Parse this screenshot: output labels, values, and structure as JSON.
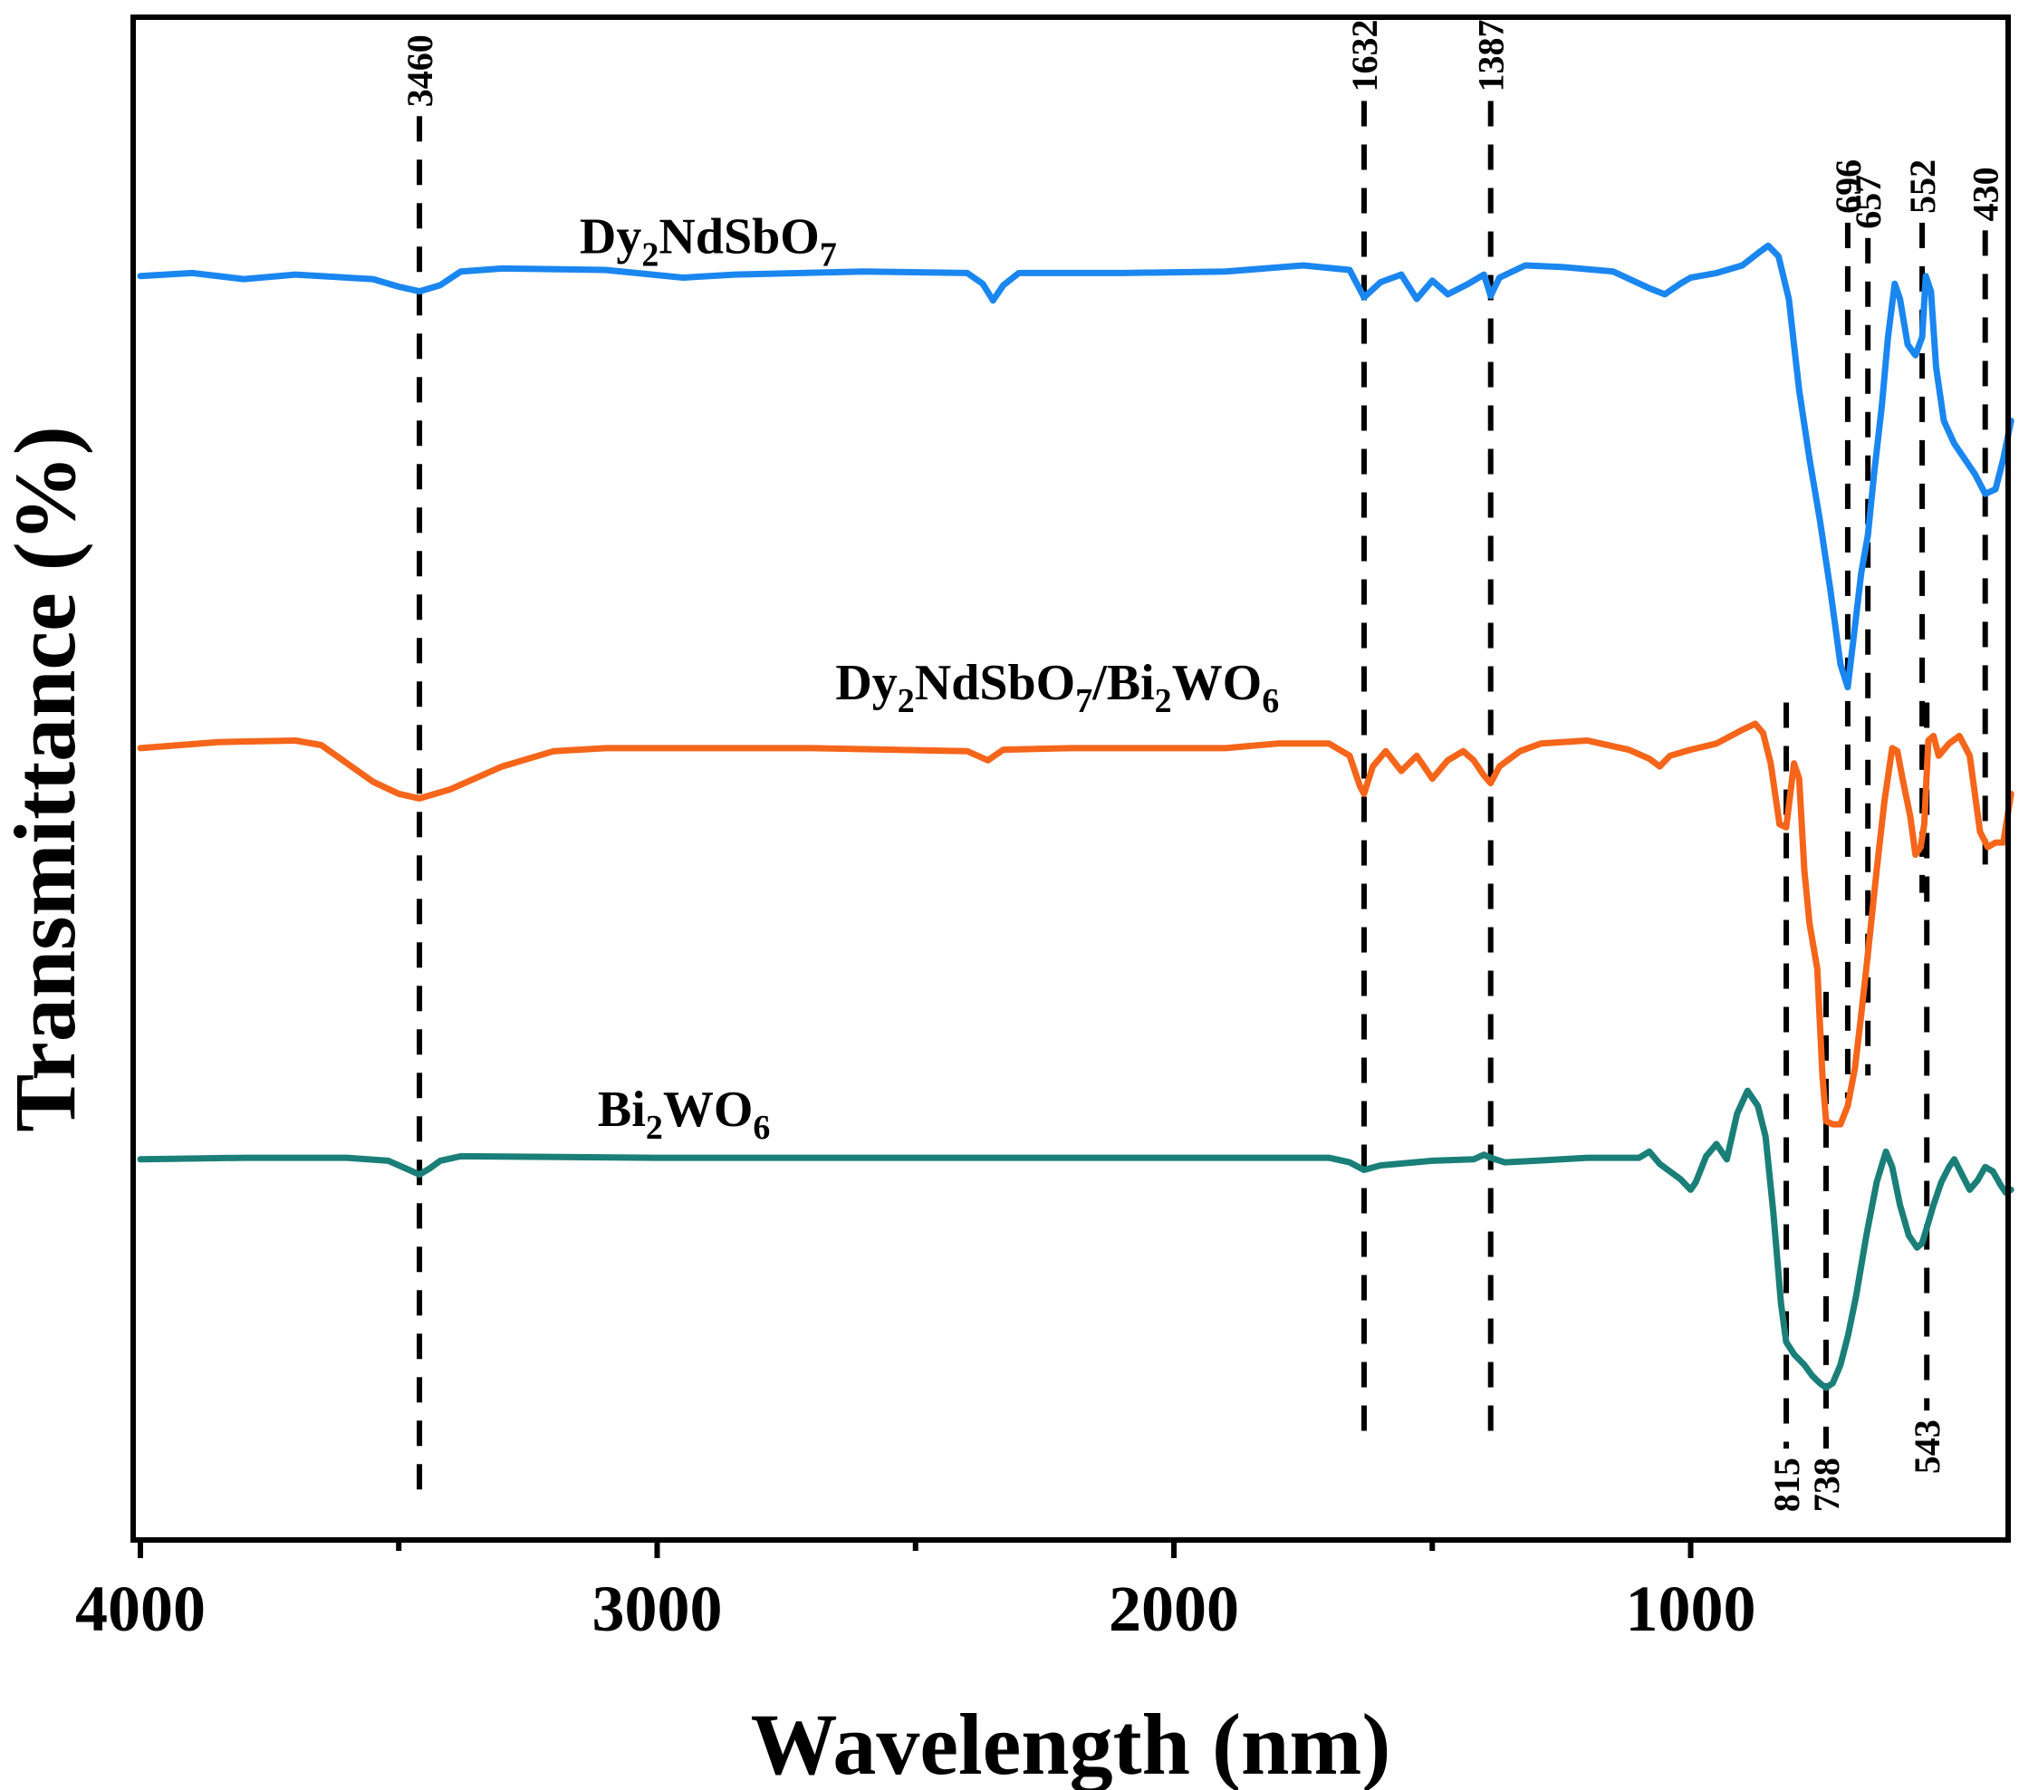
{
  "chart_data": {
    "type": "line",
    "title": "",
    "xlabel": "Wavelength (nm)",
    "ylabel": "Transmittance (%)",
    "xlim": [
      4000,
      380
    ],
    "x_reversed": true,
    "ylim": [
      0,
      100
    ],
    "y_ticks_shown": false,
    "x_ticks": [
      4000,
      3000,
      2000,
      1000
    ],
    "x_tick_labels": [
      "4000",
      "3000",
      "2000",
      "1000"
    ],
    "x_minor_ticks": [
      3500,
      2500,
      1500
    ],
    "legend": "none",
    "grid": false,
    "series": [
      {
        "name": "Dy2NdSbO7",
        "label_parts": [
          [
            "Dy",
            ""
          ],
          [
            "2",
            "sub"
          ],
          [
            "NdSbO",
            ""
          ],
          [
            "7",
            "sub"
          ]
        ],
        "color": "#1a86f0",
        "label_anchor": [
          3150,
          84.5
        ],
        "points": [
          [
            4000,
            83
          ],
          [
            3900,
            83.2
          ],
          [
            3800,
            82.8
          ],
          [
            3700,
            83.1
          ],
          [
            3600,
            82.9
          ],
          [
            3550,
            82.8
          ],
          [
            3500,
            82.3
          ],
          [
            3460,
            82.0
          ],
          [
            3420,
            82.4
          ],
          [
            3380,
            83.3
          ],
          [
            3300,
            83.5
          ],
          [
            3100,
            83.4
          ],
          [
            2950,
            82.9
          ],
          [
            2850,
            83.1
          ],
          [
            2600,
            83.3
          ],
          [
            2400,
            83.2
          ],
          [
            2370,
            82.5
          ],
          [
            2350,
            81.4
          ],
          [
            2330,
            82.4
          ],
          [
            2300,
            83.2
          ],
          [
            2100,
            83.2
          ],
          [
            1900,
            83.3
          ],
          [
            1750,
            83.7
          ],
          [
            1660,
            83.4
          ],
          [
            1632,
            81.6
          ],
          [
            1600,
            82.6
          ],
          [
            1560,
            83.1
          ],
          [
            1530,
            81.5
          ],
          [
            1500,
            82.7
          ],
          [
            1470,
            81.8
          ],
          [
            1430,
            82.5
          ],
          [
            1400,
            83.1
          ],
          [
            1387,
            81.7
          ],
          [
            1370,
            82.9
          ],
          [
            1320,
            83.7
          ],
          [
            1250,
            83.6
          ],
          [
            1150,
            83.3
          ],
          [
            1080,
            82.2
          ],
          [
            1050,
            81.8
          ],
          [
            1020,
            82.5
          ],
          [
            1000,
            82.9
          ],
          [
            950,
            83.2
          ],
          [
            900,
            83.7
          ],
          [
            870,
            84.5
          ],
          [
            850,
            85.0
          ],
          [
            830,
            84.3
          ],
          [
            810,
            81.5
          ],
          [
            790,
            75.5
          ],
          [
            770,
            71.0
          ],
          [
            750,
            67.0
          ],
          [
            730,
            62.5
          ],
          [
            710,
            57.5
          ],
          [
            696,
            56.0
          ],
          [
            682,
            60.0
          ],
          [
            670,
            63.5
          ],
          [
            657,
            66.0
          ],
          [
            645,
            70.0
          ],
          [
            630,
            74.5
          ],
          [
            618,
            79.0
          ],
          [
            605,
            82.5
          ],
          [
            595,
            81.5
          ],
          [
            580,
            78.5
          ],
          [
            565,
            77.8
          ],
          [
            552,
            79.0
          ],
          [
            545,
            83.0
          ],
          [
            535,
            82.0
          ],
          [
            525,
            77.0
          ],
          [
            510,
            73.5
          ],
          [
            490,
            72.0
          ],
          [
            470,
            71.0
          ],
          [
            450,
            70.0
          ],
          [
            430,
            68.7
          ],
          [
            410,
            69.0
          ],
          [
            395,
            71.0
          ],
          [
            380,
            73.5
          ]
        ]
      },
      {
        "name": "Dy2NdSbO7/Bi2WO6",
        "label_parts": [
          [
            "Dy",
            ""
          ],
          [
            "2",
            "sub"
          ],
          [
            "NdSbO",
            ""
          ],
          [
            "7",
            "sub"
          ],
          [
            "/Bi",
            ""
          ],
          [
            "2",
            "sub"
          ],
          [
            "WO",
            ""
          ],
          [
            "6",
            "sub"
          ]
        ],
        "color": "#f5651a",
        "label_anchor": [
          2655,
          55.2
        ],
        "points": [
          [
            4000,
            52.0
          ],
          [
            3850,
            52.4
          ],
          [
            3700,
            52.5
          ],
          [
            3650,
            52.2
          ],
          [
            3600,
            51.0
          ],
          [
            3550,
            49.8
          ],
          [
            3500,
            49.0
          ],
          [
            3460,
            48.7
          ],
          [
            3400,
            49.3
          ],
          [
            3300,
            50.8
          ],
          [
            3200,
            51.8
          ],
          [
            3100,
            52.0
          ],
          [
            2700,
            52.0
          ],
          [
            2400,
            51.8
          ],
          [
            2360,
            51.2
          ],
          [
            2330,
            51.9
          ],
          [
            2200,
            52.0
          ],
          [
            1900,
            52.0
          ],
          [
            1800,
            52.3
          ],
          [
            1700,
            52.3
          ],
          [
            1660,
            51.5
          ],
          [
            1640,
            49.5
          ],
          [
            1632,
            49.0
          ],
          [
            1615,
            50.8
          ],
          [
            1590,
            51.8
          ],
          [
            1560,
            50.5
          ],
          [
            1530,
            51.5
          ],
          [
            1500,
            50.0
          ],
          [
            1470,
            51.2
          ],
          [
            1440,
            51.8
          ],
          [
            1420,
            51.2
          ],
          [
            1400,
            50.2
          ],
          [
            1387,
            49.7
          ],
          [
            1370,
            50.8
          ],
          [
            1330,
            51.8
          ],
          [
            1290,
            52.3
          ],
          [
            1200,
            52.5
          ],
          [
            1120,
            51.9
          ],
          [
            1080,
            51.3
          ],
          [
            1060,
            50.8
          ],
          [
            1040,
            51.5
          ],
          [
            1000,
            51.9
          ],
          [
            950,
            52.3
          ],
          [
            900,
            53.2
          ],
          [
            875,
            53.6
          ],
          [
            860,
            53.0
          ],
          [
            845,
            51.0
          ],
          [
            828,
            47.0
          ],
          [
            815,
            46.8
          ],
          [
            800,
            51.0
          ],
          [
            790,
            50.0
          ],
          [
            780,
            44.0
          ],
          [
            770,
            40.5
          ],
          [
            755,
            37.5
          ],
          [
            745,
            30.5
          ],
          [
            738,
            27.5
          ],
          [
            725,
            27.3
          ],
          [
            710,
            27.3
          ],
          [
            696,
            28.5
          ],
          [
            682,
            31.0
          ],
          [
            670,
            34.5
          ],
          [
            657,
            38.5
          ],
          [
            640,
            44.0
          ],
          [
            625,
            48.5
          ],
          [
            610,
            52.0
          ],
          [
            600,
            51.8
          ],
          [
            590,
            50.0
          ],
          [
            575,
            47.5
          ],
          [
            565,
            45.0
          ],
          [
            555,
            45.5
          ],
          [
            548,
            47.0
          ],
          [
            540,
            52.5
          ],
          [
            530,
            52.8
          ],
          [
            520,
            51.5
          ],
          [
            500,
            52.3
          ],
          [
            480,
            52.8
          ],
          [
            460,
            51.5
          ],
          [
            440,
            46.5
          ],
          [
            425,
            45.5
          ],
          [
            410,
            45.8
          ],
          [
            395,
            45.8
          ],
          [
            380,
            49.0
          ]
        ]
      },
      {
        "name": "Bi2WO6",
        "label_parts": [
          [
            "Bi",
            ""
          ],
          [
            "2",
            "sub"
          ],
          [
            "WO",
            ""
          ],
          [
            "6",
            "sub"
          ]
        ],
        "color": "#1a7f78",
        "label_anchor": [
          3115,
          27.2
        ],
        "points": [
          [
            4000,
            25.0
          ],
          [
            3800,
            25.1
          ],
          [
            3600,
            25.1
          ],
          [
            3520,
            24.9
          ],
          [
            3480,
            24.3
          ],
          [
            3460,
            24.0
          ],
          [
            3440,
            24.4
          ],
          [
            3420,
            24.9
          ],
          [
            3380,
            25.2
          ],
          [
            3000,
            25.1
          ],
          [
            2500,
            25.1
          ],
          [
            2000,
            25.1
          ],
          [
            1700,
            25.1
          ],
          [
            1660,
            24.8
          ],
          [
            1632,
            24.3
          ],
          [
            1600,
            24.6
          ],
          [
            1500,
            24.9
          ],
          [
            1420,
            25.0
          ],
          [
            1400,
            25.3
          ],
          [
            1387,
            25.1
          ],
          [
            1360,
            24.8
          ],
          [
            1300,
            24.9
          ],
          [
            1200,
            25.1
          ],
          [
            1100,
            25.1
          ],
          [
            1080,
            25.5
          ],
          [
            1060,
            24.7
          ],
          [
            1040,
            24.2
          ],
          [
            1020,
            23.7
          ],
          [
            1000,
            23.0
          ],
          [
            990,
            23.5
          ],
          [
            970,
            25.2
          ],
          [
            950,
            26.0
          ],
          [
            930,
            25.0
          ],
          [
            910,
            28.0
          ],
          [
            890,
            29.5
          ],
          [
            870,
            28.5
          ],
          [
            855,
            26.5
          ],
          [
            840,
            21.5
          ],
          [
            825,
            15.5
          ],
          [
            815,
            13.0
          ],
          [
            800,
            12.2
          ],
          [
            780,
            11.5
          ],
          [
            765,
            10.8
          ],
          [
            750,
            10.3
          ],
          [
            738,
            10.0
          ],
          [
            725,
            10.3
          ],
          [
            710,
            11.5
          ],
          [
            695,
            13.5
          ],
          [
            680,
            16.0
          ],
          [
            660,
            20.0
          ],
          [
            640,
            23.5
          ],
          [
            622,
            25.5
          ],
          [
            610,
            24.5
          ],
          [
            595,
            22.0
          ],
          [
            578,
            20.0
          ],
          [
            562,
            19.2
          ],
          [
            552,
            19.5
          ],
          [
            543,
            20.5
          ],
          [
            530,
            22.0
          ],
          [
            515,
            23.5
          ],
          [
            500,
            24.5
          ],
          [
            490,
            25.0
          ],
          [
            475,
            24.0
          ],
          [
            460,
            23.0
          ],
          [
            445,
            23.6
          ],
          [
            430,
            24.5
          ],
          [
            415,
            24.2
          ],
          [
            400,
            23.3
          ],
          [
            390,
            22.8
          ],
          [
            380,
            23.0
          ]
        ]
      }
    ],
    "reference_lines": [
      {
        "x": 3460,
        "label": "3460",
        "y_top": 93.5,
        "y_bottom": 3.0,
        "label_side": "top"
      },
      {
        "x": 1632,
        "label": "1632",
        "y_top": 94.5,
        "y_bottom": 7.0,
        "label_side": "top"
      },
      {
        "x": 1387,
        "label": "1387",
        "y_top": 94.5,
        "y_bottom": 7.0,
        "label_side": "top"
      },
      {
        "x": 696,
        "label": "696",
        "y_top": 86.5,
        "y_bottom": 29.0,
        "label_side": "top"
      },
      {
        "x": 657,
        "label": "657",
        "y_top": 85.5,
        "y_bottom": 30.5,
        "label_side": "top"
      },
      {
        "x": 552,
        "label": "552",
        "y_top": 86.5,
        "y_bottom": 42.5,
        "label_side": "top"
      },
      {
        "x": 430,
        "label": "430",
        "y_top": 86.0,
        "y_bottom": 44.0,
        "label_side": "top"
      },
      {
        "x": 815,
        "label": "815",
        "y_top": 55.0,
        "y_bottom": 6.0,
        "label_side": "bottom"
      },
      {
        "x": 738,
        "label": "738",
        "y_top": 36.0,
        "y_bottom": 6.0,
        "label_side": "bottom"
      },
      {
        "x": 543,
        "label": "543",
        "y_top": 55.0,
        "y_bottom": 8.5,
        "label_side": "bottom"
      }
    ]
  }
}
